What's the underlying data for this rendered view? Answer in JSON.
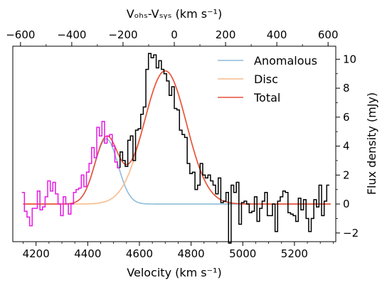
{
  "chart_data": {
    "type": "line",
    "xlabel": "Velocity (km s⁻¹)",
    "top_xlabel": "Vₒₕₛ-Vₛᵧₛ (km s⁻¹)",
    "ylabel": "Flux density (mJy)",
    "xlim": [
      4110,
      5360
    ],
    "ylim": [
      -2.6,
      10.9
    ],
    "xticks": [
      4200,
      4400,
      4600,
      4800,
      5000,
      5200
    ],
    "top_xlim": [
      -630,
      630
    ],
    "top_xticks": [
      -600,
      -400,
      -200,
      0,
      200,
      400,
      600
    ],
    "yticks": [
      -2,
      0,
      2,
      4,
      6,
      8,
      10
    ],
    "v_sys": 4740,
    "legend_position": "upper right",
    "models": [
      {
        "name": "Anomalous",
        "color": "#8ebcd8",
        "shape": "gaussian",
        "amplitude": 4.5,
        "center": 4472,
        "sigma": 45
      },
      {
        "name": "Disc",
        "color": "#f9bb8a",
        "shape": "gaussian",
        "amplitude": 9.2,
        "center": 4700,
        "sigma": 82
      },
      {
        "name": "Total",
        "color": "#e9503a",
        "shape": "sum"
      }
    ],
    "spectrum": {
      "color_low": "#e41ae4",
      "color_high": "#000000",
      "split_velocity": 4530,
      "bin_width": 10,
      "x": [
        4150,
        4160,
        4170,
        4180,
        4190,
        4200,
        4210,
        4220,
        4230,
        4240,
        4250,
        4260,
        4270,
        4280,
        4290,
        4300,
        4310,
        4320,
        4330,
        4340,
        4350,
        4360,
        4370,
        4380,
        4390,
        4400,
        4410,
        4420,
        4430,
        4440,
        4450,
        4460,
        4470,
        4480,
        4490,
        4500,
        4510,
        4520,
        4530,
        4540,
        4550,
        4560,
        4570,
        4580,
        4590,
        4600,
        4610,
        4620,
        4630,
        4640,
        4650,
        4660,
        4670,
        4680,
        4690,
        4700,
        4710,
        4720,
        4730,
        4740,
        4750,
        4760,
        4770,
        4780,
        4790,
        4800,
        4810,
        4820,
        4830,
        4840,
        4850,
        4860,
        4870,
        4880,
        4890,
        4900,
        4910,
        4920,
        4930,
        4940,
        4950,
        4960,
        4970,
        4980,
        4990,
        5000,
        5010,
        5020,
        5030,
        5040,
        5050,
        5060,
        5070,
        5080,
        5090,
        5100,
        5110,
        5120,
        5130,
        5140,
        5150,
        5160,
        5170,
        5180,
        5190,
        5200,
        5210,
        5220,
        5230,
        5240,
        5250,
        5260,
        5270,
        5280,
        5290,
        5300,
        5310,
        5320,
        5330
      ],
      "y": [
        0.8,
        -0.5,
        -0.9,
        -1.5,
        -0.3,
        -0.3,
        0.9,
        -0.4,
        -0.2,
        0.5,
        1.6,
        0.9,
        1.5,
        0.7,
        0.0,
        -0.8,
        0.5,
        0.0,
        -0.7,
        0.0,
        0.8,
        1.0,
        1.1,
        2.0,
        1.2,
        2.2,
        2.8,
        3.9,
        3.2,
        5.3,
        4.7,
        5.7,
        4.2,
        4.7,
        4.8,
        4.0,
        2.9,
        2.5,
        3.6,
        3.0,
        2.6,
        4.4,
        4.7,
        3.0,
        5.1,
        5.2,
        6.2,
        6.7,
        9.3,
        10.4,
        10.1,
        10.3,
        9.4,
        9.9,
        9.3,
        9.0,
        8.5,
        7.5,
        8.1,
        6.6,
        6.5,
        5.1,
        4.8,
        4.6,
        2.8,
        2.1,
        2.2,
        1.0,
        1.3,
        2.8,
        2.0,
        1.8,
        2.0,
        1.6,
        1.3,
        0.7,
        1.8,
        0.1,
        0.2,
        0.8,
        -2.7,
        1.3,
        0.8,
        1.5,
        -1.4,
        0.1,
        0.2,
        0.0,
        -0.6,
        -0.5,
        0.5,
        -1.2,
        -0.3,
        0.2,
        0.8,
        -0.8,
        -0.8,
        0.0,
        -1.9,
        0.2,
        0.5,
        0.9,
        0.8,
        -0.6,
        -0.7,
        -0.8,
        -1.2,
        0.4,
        -0.4,
        0.3,
        -1.0,
        -1.9,
        -1.0,
        0.3,
        -0.2,
        1.3,
        -0.8,
        0.2,
        1.3
      ]
    }
  }
}
